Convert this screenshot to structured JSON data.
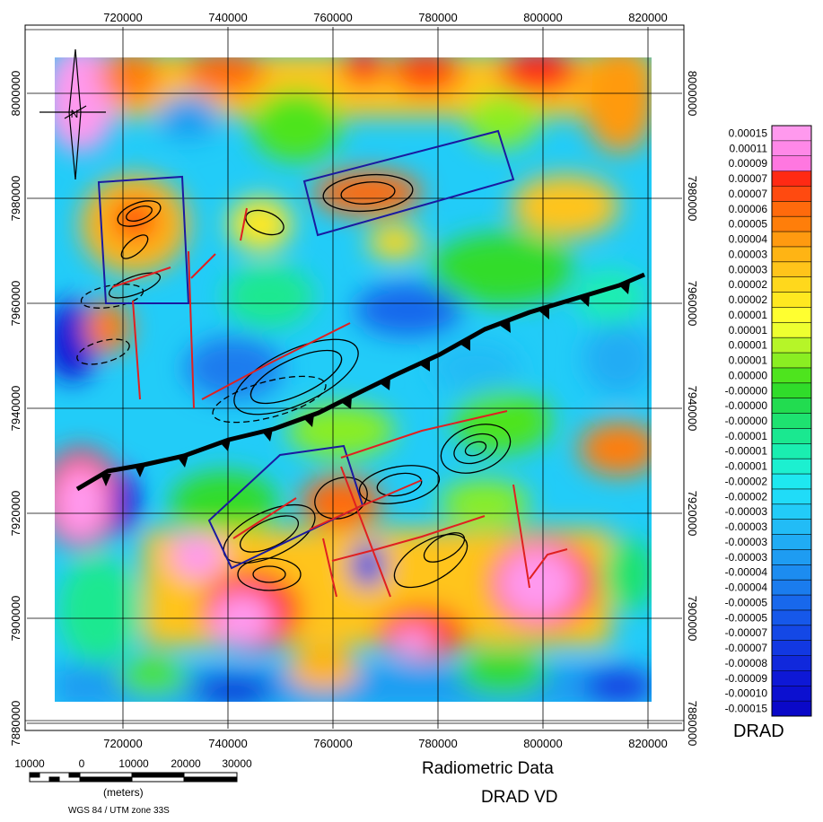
{
  "map": {
    "x_ticks": [
      "720000",
      "740000",
      "760000",
      "780000",
      "800000",
      "820000"
    ],
    "y_ticks": [
      "8000000",
      "7980000",
      "7960000",
      "7940000",
      "7920000",
      "7900000",
      "7880000"
    ],
    "north_arrow_label": "N"
  },
  "legend": {
    "title": "DRAD",
    "labels": [
      "0.00015",
      "0.00011",
      "0.00009",
      "0.00007",
      "0.00007",
      "0.00006",
      "0.00005",
      "0.00004",
      "0.00003",
      "0.00003",
      "0.00002",
      "0.00002",
      "0.00001",
      "0.00001",
      "0.00001",
      "0.00001",
      "0.00000",
      "-0.00000",
      "-0.00000",
      "-0.00000",
      "-0.00001",
      "-0.00001",
      "-0.00001",
      "-0.00002",
      "-0.00002",
      "-0.00003",
      "-0.00003",
      "-0.00003",
      "-0.00003",
      "-0.00004",
      "-0.00004",
      "-0.00005",
      "-0.00005",
      "-0.00007",
      "-0.00007",
      "-0.00008",
      "-0.00009",
      "-0.00010",
      "-0.00015"
    ],
    "colors": [
      "#ff99ee",
      "#ff88e8",
      "#ff77e0",
      "#ff2a14",
      "#ff4a10",
      "#ff6a0c",
      "#ff7e0a",
      "#ff9a10",
      "#ffb414",
      "#ffc41a",
      "#ffd81c",
      "#ffe820",
      "#ffff30",
      "#eeff30",
      "#b6f528",
      "#8aee22",
      "#4ee41e",
      "#30dc2a",
      "#22dc50",
      "#1ee270",
      "#1ae890",
      "#1aeeb0",
      "#1cf0d0",
      "#1ee8f0",
      "#20dcf8",
      "#22ccf8",
      "#22bcf6",
      "#20acf4",
      "#1e9cf2",
      "#1c8cf0",
      "#1a7cee",
      "#1868ec",
      "#1658ea",
      "#1448e6",
      "#1238e2",
      "#1028dc",
      "#0e18d6",
      "#0c10d0",
      "#0a08c8"
    ]
  },
  "scale_bar": {
    "labels": [
      "10000",
      "0",
      "10000",
      "20000",
      "30000"
    ],
    "units": "(meters)"
  },
  "projection": "WGS 84 / UTM zone 33S",
  "title": "Radiometric Data",
  "subtitle": "DRAD VD"
}
